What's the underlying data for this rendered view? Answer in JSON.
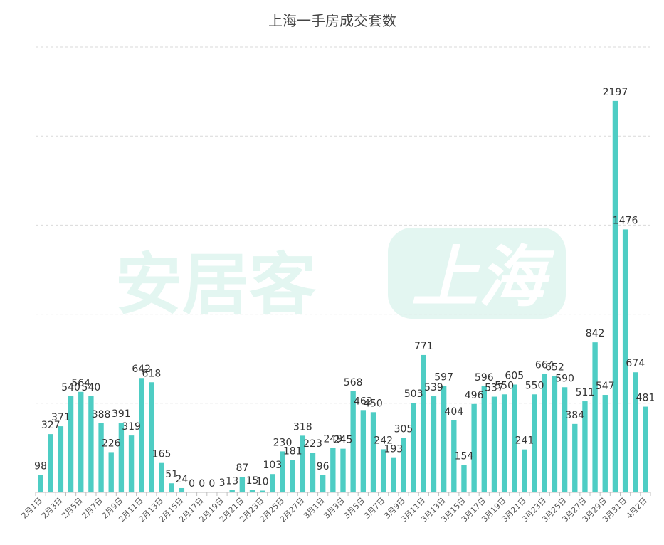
{
  "watermark": {
    "brand": "安居客",
    "city": "上海"
  },
  "chart_data": {
    "type": "bar",
    "title": "上海一手房成交套数",
    "xlabel": "",
    "ylabel": "",
    "ylim": [
      0,
      2500
    ],
    "grid": true,
    "legend": "none",
    "bar_color": "#4ecdc4",
    "categories": [
      "2月1日",
      "2月2日",
      "2月3日",
      "2月4日",
      "2月5日",
      "2月6日",
      "2月7日",
      "2月8日",
      "2月9日",
      "2月10日",
      "2月11日",
      "2月12日",
      "2月13日",
      "2月14日",
      "2月15日",
      "2月16日",
      "2月17日",
      "2月18日",
      "2月19日",
      "2月20日",
      "2月21日",
      "2月22日",
      "2月23日",
      "2月24日",
      "2月25日",
      "2月26日",
      "2月27日",
      "2月28日",
      "3月1日",
      "3月2日",
      "3月3日",
      "3月4日",
      "3月5日",
      "3月6日",
      "3月7日",
      "3月8日",
      "3月9日",
      "3月10日",
      "3月11日",
      "3月12日",
      "3月13日",
      "3月14日",
      "3月15日",
      "3月16日",
      "3月17日",
      "3月18日",
      "3月19日",
      "3月20日",
      "3月21日",
      "3月22日",
      "3月23日",
      "3月24日",
      "3月25日",
      "3月26日",
      "3月27日",
      "3月28日",
      "3月29日",
      "3月30日",
      "3月31日",
      "4月1日",
      "4月2日"
    ],
    "values": [
      98,
      327,
      371,
      540,
      564,
      540,
      388,
      226,
      391,
      319,
      642,
      618,
      165,
      51,
      24,
      0,
      0,
      0,
      3,
      13,
      87,
      15,
      10,
      103,
      230,
      181,
      318,
      223,
      96,
      249,
      245,
      568,
      462,
      450,
      242,
      193,
      305,
      503,
      771,
      539,
      597,
      404,
      154,
      496,
      596,
      537,
      550,
      605,
      241,
      550,
      664,
      652,
      590,
      384,
      511,
      842,
      547,
      2197,
      1476,
      674,
      481
    ],
    "tick_labels_shown": [
      "2月1日",
      "2月3日",
      "2月5日",
      "2月7日",
      "2月9日",
      "2月11日",
      "2月13日",
      "2月15日",
      "2月17日",
      "2月19日",
      "2月21日",
      "2月23日",
      "2月25日",
      "2月27日",
      "3月1日",
      "3月3日",
      "3月5日",
      "3月7日",
      "3月9日",
      "3月11日",
      "3月13日",
      "3月15日",
      "3月17日",
      "3月19日",
      "3月21日",
      "3月23日",
      "3月25日",
      "3月27日",
      "3月29日",
      "3月31日",
      "4月2日"
    ]
  }
}
